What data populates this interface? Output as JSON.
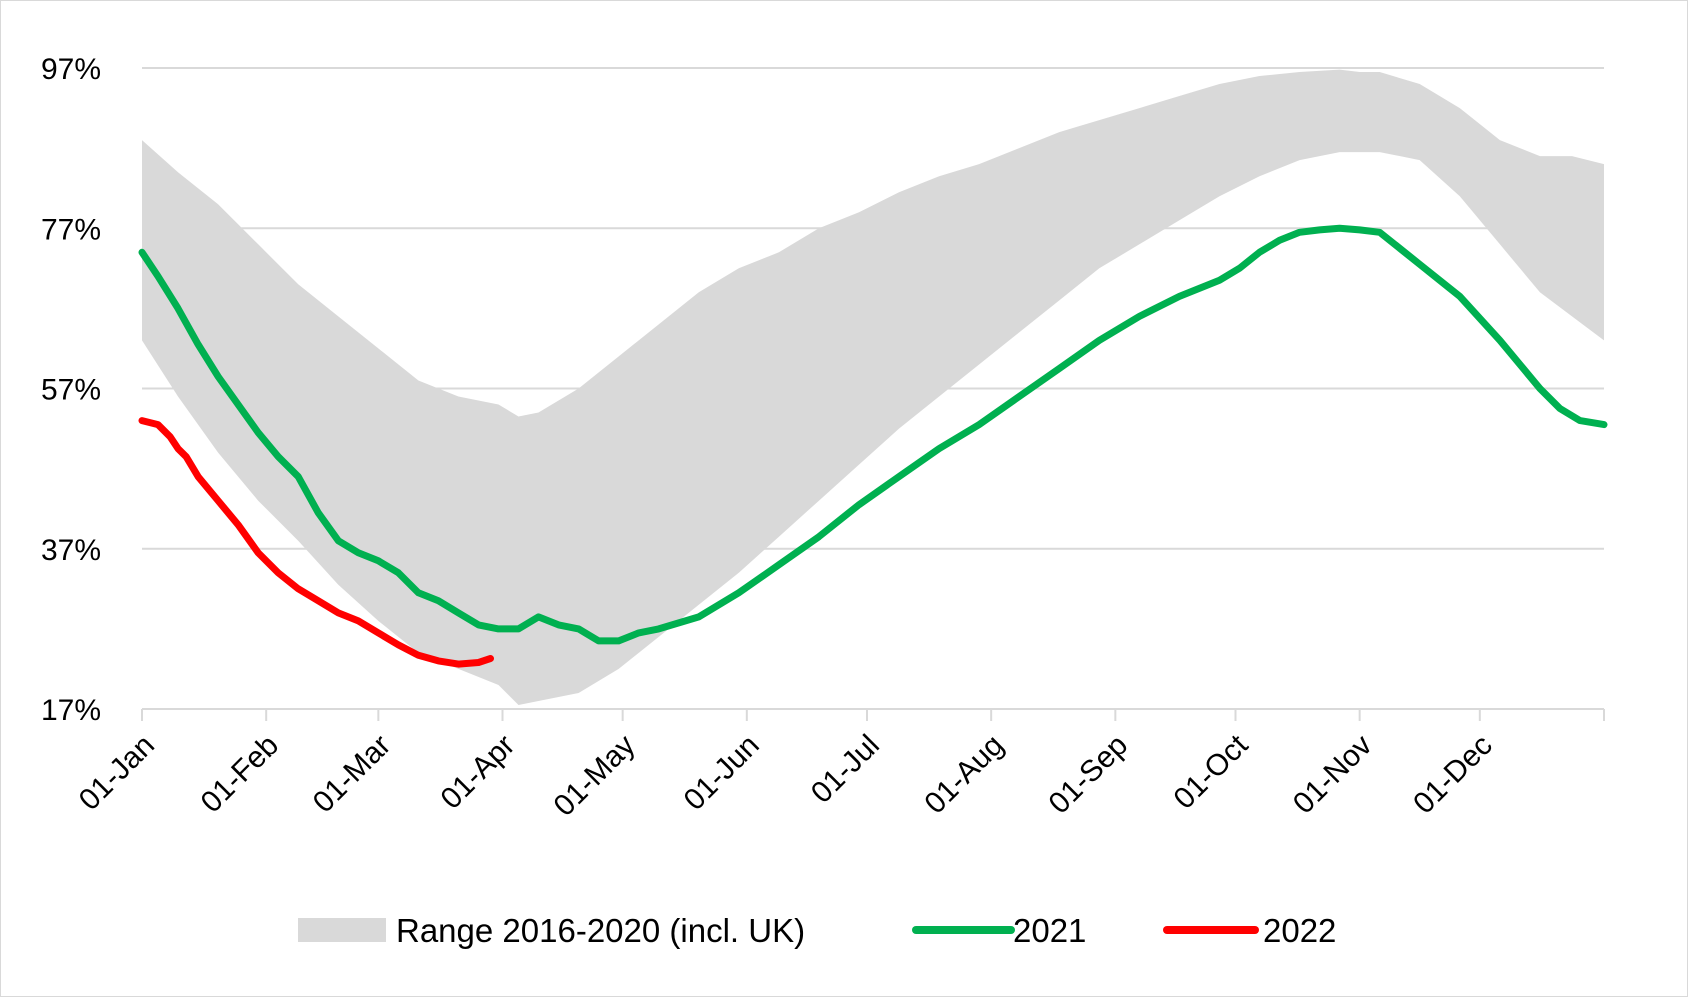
{
  "chart_data": {
    "type": "area",
    "title": "",
    "xlabel": "",
    "ylabel": "",
    "ylim": [
      17,
      97
    ],
    "y_ticks": [
      "17%",
      "37%",
      "57%",
      "77%",
      "97%"
    ],
    "y_tick_values": [
      17,
      37,
      57,
      77,
      97
    ],
    "x_ticks": [
      "01-Jan",
      "01-Feb",
      "01-Mar",
      "01-Apr",
      "01-May",
      "01-Jun",
      "01-Jul",
      "01-Aug",
      "01-Sep",
      "01-Oct",
      "01-Nov",
      "01-Dec"
    ],
    "x_tick_days": [
      1,
      32,
      60,
      91,
      121,
      152,
      182,
      213,
      244,
      274,
      305,
      335
    ],
    "xlim_days": [
      1,
      366
    ],
    "grid": true,
    "legend_position": "bottom",
    "colors": {
      "range": "#d9d9d9",
      "2021": "#00b050",
      "2022": "#ff0000"
    },
    "series": [
      {
        "name": "Range 2016-2020 (incl. UK)",
        "kind": "band",
        "x_days": [
          1,
          10,
          20,
          30,
          40,
          50,
          60,
          70,
          80,
          90,
          95,
          100,
          110,
          120,
          130,
          140,
          150,
          160,
          170,
          180,
          190,
          200,
          210,
          220,
          230,
          240,
          250,
          260,
          270,
          280,
          290,
          300,
          305,
          310,
          320,
          330,
          340,
          350,
          358,
          366
        ],
        "upper": [
          88,
          84,
          80,
          75,
          70,
          66,
          62,
          58,
          56,
          55,
          53.5,
          54,
          57,
          61,
          65,
          69,
          72,
          74,
          77,
          79,
          81.5,
          83.5,
          85,
          87,
          89,
          90.5,
          92,
          93.5,
          95,
          96,
          96.5,
          96.8,
          96.5,
          96.5,
          95,
          92,
          88,
          86,
          86,
          85
        ],
        "lower": [
          63,
          56,
          49,
          43,
          38,
          32.5,
          28,
          24,
          22,
          20,
          17.5,
          18,
          19,
          22,
          26,
          30,
          34,
          38.5,
          43,
          47.5,
          52,
          56,
          60,
          64,
          68,
          72,
          75,
          78,
          81,
          83.5,
          85.5,
          86.5,
          86.5,
          86.5,
          85.5,
          81,
          75,
          69,
          66,
          63
        ]
      },
      {
        "name": "2021",
        "kind": "line",
        "x_days": [
          1,
          5,
          10,
          15,
          20,
          25,
          30,
          35,
          40,
          45,
          50,
          55,
          60,
          65,
          70,
          75,
          80,
          85,
          90,
          95,
          100,
          105,
          110,
          115,
          120,
          125,
          130,
          140,
          150,
          160,
          170,
          180,
          190,
          200,
          210,
          220,
          230,
          240,
          250,
          260,
          270,
          275,
          280,
          285,
          290,
          295,
          300,
          305,
          310,
          320,
          330,
          340,
          350,
          355,
          360,
          366
        ],
        "values": [
          74,
          71,
          67,
          62.5,
          58.5,
          55,
          51.5,
          48.5,
          46,
          41.5,
          38,
          36.5,
          35.5,
          34,
          31.5,
          30.5,
          29,
          27.5,
          27,
          27,
          28.5,
          27.5,
          27,
          25.5,
          25.5,
          26.5,
          27,
          28.5,
          31.5,
          35,
          38.5,
          42.5,
          46,
          49.5,
          52.5,
          56,
          59.5,
          63,
          66,
          68.5,
          70.5,
          72,
          74,
          75.5,
          76.5,
          76.8,
          77,
          76.8,
          76.5,
          72.5,
          68.5,
          63,
          57,
          54.5,
          53,
          52.5
        ]
      },
      {
        "name": "2022",
        "kind": "line",
        "x_days": [
          1,
          5,
          8,
          10,
          12,
          15,
          20,
          25,
          30,
          35,
          40,
          45,
          50,
          55,
          60,
          65,
          70,
          75,
          80,
          85,
          88
        ],
        "values": [
          53,
          52.5,
          51,
          49.5,
          48.5,
          46,
          43,
          40,
          36.5,
          34,
          32,
          30.5,
          29,
          28,
          26.5,
          25,
          23.7,
          23,
          22.6,
          22.8,
          23.3
        ]
      }
    ]
  }
}
